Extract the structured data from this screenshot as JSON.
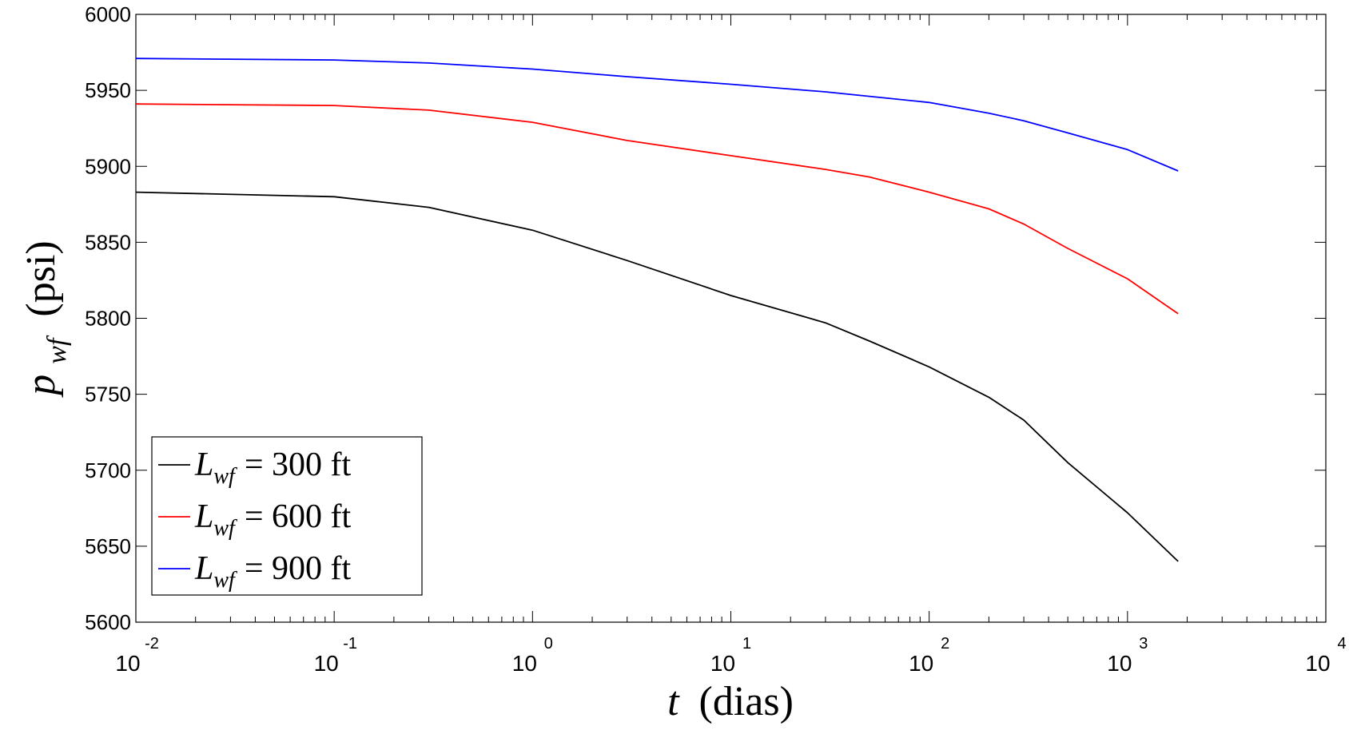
{
  "chart_data": {
    "type": "line",
    "title": "",
    "xlabel": "t (dias)",
    "xlabel_var": "t",
    "xlabel_unit": "(dias)",
    "ylabel": "p_wf (psi)",
    "ylabel_var": "p",
    "ylabel_sub": "wf",
    "ylabel_unit": "(psi)",
    "xscale": "log",
    "xlim": [
      0.01,
      10000
    ],
    "ylim": [
      5600,
      6000
    ],
    "grid": false,
    "legend_position": "bottom-left",
    "x_tick_exponents": [
      "-2",
      "-1",
      "0",
      "1",
      "2",
      "3",
      "4"
    ],
    "x_tick_base": "10",
    "y_ticks": [
      "5600",
      "5650",
      "5700",
      "5750",
      "5800",
      "5850",
      "5900",
      "5950",
      "6000"
    ],
    "series": [
      {
        "name": "L_wf = 300 ft",
        "label_var": "L",
        "label_sub": "wf",
        "label_rest": "= 300 ft",
        "color": "#000000",
        "x": [
          0.01,
          0.1,
          0.3,
          1,
          3,
          10,
          30,
          50,
          100,
          200,
          300,
          500,
          1000,
          1800
        ],
        "y": [
          5883,
          5880,
          5873,
          5858,
          5838,
          5815,
          5797,
          5785,
          5768,
          5748,
          5733,
          5705,
          5672,
          5640
        ]
      },
      {
        "name": "L_wf = 600 ft",
        "label_var": "L",
        "label_sub": "wf",
        "label_rest": "= 600 ft",
        "color": "#ff0000",
        "x": [
          0.01,
          0.1,
          0.3,
          1,
          3,
          10,
          30,
          50,
          100,
          200,
          300,
          500,
          1000,
          1800
        ],
        "y": [
          5941,
          5940,
          5937,
          5929,
          5917,
          5907,
          5898,
          5893,
          5883,
          5872,
          5862,
          5846,
          5826,
          5803
        ]
      },
      {
        "name": "L_wf = 900 ft",
        "label_var": "L",
        "label_sub": "wf",
        "label_rest": "= 900 ft",
        "color": "#0000ff",
        "x": [
          0.01,
          0.1,
          0.3,
          1,
          3,
          10,
          30,
          100,
          200,
          300,
          500,
          1000,
          1800
        ],
        "y": [
          5971,
          5970,
          5968,
          5964,
          5959,
          5954,
          5949,
          5942,
          5935,
          5930,
          5922,
          5911,
          5897
        ]
      }
    ]
  }
}
